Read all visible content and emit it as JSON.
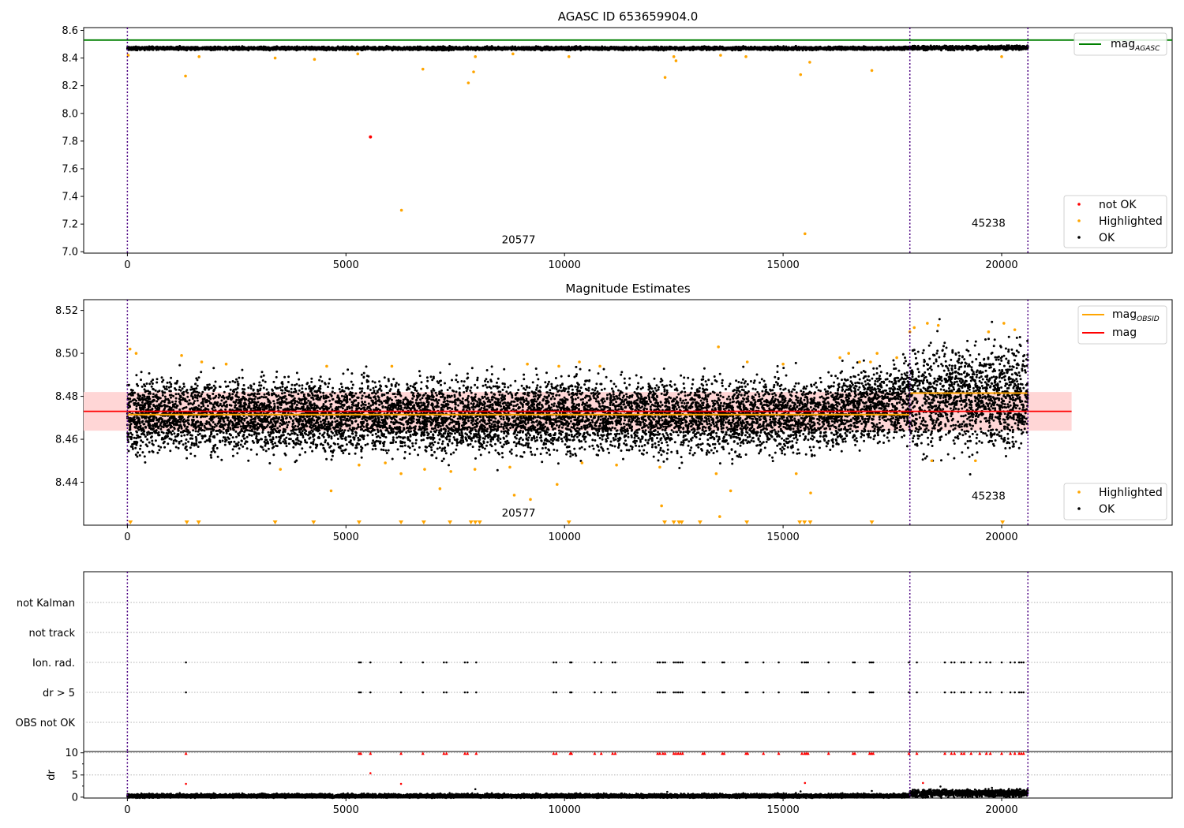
{
  "chart_data": [
    {
      "type": "scatter",
      "title": "AGASC ID 653659904.0",
      "xlim": [
        -1000,
        23900
      ],
      "ylim": [
        6.99,
        8.62
      ],
      "x_ticks": [
        0,
        5000,
        10000,
        15000,
        20000
      ],
      "y_ticks": [
        7.0,
        7.2,
        7.4,
        7.6,
        7.8,
        8.0,
        8.2,
        8.4,
        8.6
      ],
      "x_range": [
        0,
        20600
      ],
      "mag_agasc": 8.53,
      "ok_band": {
        "center": 8.47,
        "halfwidth": 0.006,
        "center_after_17900": 8.474
      },
      "highlighted_points": [
        [
          20,
          8.42
        ],
        [
          1330,
          8.27
        ],
        [
          1640,
          8.41
        ],
        [
          3380,
          8.4
        ],
        [
          4280,
          8.39
        ],
        [
          5270,
          8.43
        ],
        [
          6760,
          8.32
        ],
        [
          7800,
          8.22
        ],
        [
          7920,
          8.3
        ],
        [
          7960,
          8.41
        ],
        [
          8820,
          8.43
        ],
        [
          10100,
          8.41
        ],
        [
          12300,
          8.26
        ],
        [
          12550,
          8.38
        ],
        [
          12500,
          8.41
        ],
        [
          13570,
          8.42
        ],
        [
          14150,
          8.41
        ],
        [
          15400,
          8.28
        ],
        [
          15610,
          8.37
        ],
        [
          17030,
          8.31
        ],
        [
          20000,
          8.41
        ],
        [
          6270,
          7.3
        ],
        [
          15500,
          7.13
        ]
      ],
      "not_ok_points": [
        [
          5560,
          7.83
        ]
      ],
      "obsid_boundaries": [
        0,
        17900,
        20600
      ],
      "obsid_labels": [
        {
          "text": "20577",
          "x": 8950,
          "y": 7.06
        },
        {
          "text": "45238",
          "x": 19700,
          "y": 7.18
        }
      ],
      "legend_top": {
        "placement": "upper right",
        "entries": [
          {
            "label": "mag",
            "sub": "AGASC",
            "color": "#008000"
          }
        ]
      },
      "legend_bottom": {
        "placement": "lower right",
        "entries": [
          {
            "label": "not OK",
            "color": "#ff0000"
          },
          {
            "label": "Highlighted",
            "color": "#ffa500"
          },
          {
            "label": "OK",
            "color": "#000000"
          }
        ]
      }
    },
    {
      "type": "scatter",
      "title": "Magnitude Estimates",
      "xlim": [
        -1000,
        23900
      ],
      "ylim": [
        8.42,
        8.525
      ],
      "x_ticks": [
        0,
        5000,
        10000,
        15000,
        20000
      ],
      "y_ticks": [
        8.44,
        8.46,
        8.48,
        8.5,
        8.52
      ],
      "x_range": [
        0,
        20600
      ],
      "mag": 8.473,
      "mag_band": [
        8.464,
        8.482
      ],
      "mag_band_xrange": [
        -1000,
        21600
      ],
      "mag_obsid": [
        {
          "x0": 0,
          "x1": 17900,
          "value": 8.4715
        },
        {
          "x0": 17900,
          "x1": 20600,
          "value": 8.4815
        }
      ],
      "ok_band": {
        "center_start": 8.471,
        "center_end": 8.478,
        "halfwidth": 0.008,
        "ramp_start": 15500,
        "center_after_17900": 8.48,
        "halfwidth_after_17900": 0.012
      },
      "highlighted_points": [
        [
          60,
          8.502
        ],
        [
          200,
          8.5
        ],
        [
          1240,
          8.499
        ],
        [
          1700,
          8.496
        ],
        [
          2260,
          8.495
        ],
        [
          4560,
          8.494
        ],
        [
          6050,
          8.494
        ],
        [
          9150,
          8.495
        ],
        [
          9870,
          8.494
        ],
        [
          10340,
          8.496
        ],
        [
          10810,
          8.494
        ],
        [
          13520,
          8.503
        ],
        [
          14180,
          8.496
        ],
        [
          15000,
          8.495
        ],
        [
          16300,
          8.498
        ],
        [
          16500,
          8.5
        ],
        [
          16750,
          8.496
        ],
        [
          17000,
          8.496
        ],
        [
          17150,
          8.5
        ],
        [
          17600,
          8.498
        ],
        [
          17900,
          8.51
        ],
        [
          18000,
          8.512
        ],
        [
          18300,
          8.514
        ],
        [
          18550,
          8.513
        ],
        [
          19700,
          8.51
        ],
        [
          20050,
          8.514
        ],
        [
          20300,
          8.511
        ],
        [
          3500,
          8.446
        ],
        [
          4660,
          8.436
        ],
        [
          5300,
          8.448
        ],
        [
          5900,
          8.449
        ],
        [
          6260,
          8.444
        ],
        [
          6800,
          8.446
        ],
        [
          7150,
          8.437
        ],
        [
          7400,
          8.445
        ],
        [
          7950,
          8.446
        ],
        [
          8750,
          8.447
        ],
        [
          8850,
          8.434
        ],
        [
          9220,
          8.432
        ],
        [
          9830,
          8.439
        ],
        [
          10400,
          8.449
        ],
        [
          11190,
          8.448
        ],
        [
          12180,
          8.447
        ],
        [
          12220,
          8.429
        ],
        [
          13470,
          8.444
        ],
        [
          13800,
          8.436
        ],
        [
          13550,
          8.424
        ],
        [
          15300,
          8.444
        ],
        [
          15630,
          8.435
        ],
        [
          18400,
          8.45
        ],
        [
          19400,
          8.45
        ]
      ],
      "clipped_points": [
        70,
        1360,
        1630,
        3380,
        4260,
        5300,
        6260,
        6780,
        7380,
        7860,
        7960,
        8060,
        10100,
        12290,
        12500,
        12620,
        12680,
        13100,
        14170,
        15380,
        15490,
        15620,
        17030,
        20020
      ],
      "obsid_boundaries": [
        0,
        17900,
        20600
      ],
      "obsid_labels": [
        {
          "text": "20577",
          "x": 8950,
          "y": 8.424
        },
        {
          "text": "45238",
          "x": 19700,
          "y": 8.432
        }
      ],
      "legend_top": {
        "placement": "upper right",
        "entries": [
          {
            "label": "mag",
            "sub": "OBSID",
            "color": "#ffa500"
          },
          {
            "label": "mag",
            "color": "#ff0000"
          }
        ]
      },
      "legend_bottom": {
        "placement": "lower right",
        "entries": [
          {
            "label": "Highlighted",
            "color": "#ffa500"
          },
          {
            "label": "OK",
            "color": "#000000"
          }
        ]
      }
    },
    {
      "type": "scatter",
      "title": "",
      "xlim": [
        -1000,
        23900
      ],
      "x_range": [
        0,
        20600
      ],
      "rows": [
        "not Kalman",
        "not track",
        "Ion. rad.",
        "dr > 5",
        "OBS not OK"
      ],
      "flag_times": [
        1340,
        5300,
        5340,
        5560,
        6260,
        6760,
        7240,
        7300,
        7720,
        7780,
        7980,
        9750,
        9810,
        10130,
        10160,
        10690,
        10840,
        11100,
        11160,
        12130,
        12180,
        12250,
        12300,
        12500,
        12550,
        12600,
        12650,
        12700,
        13160,
        13200,
        13610,
        13650,
        14150,
        14190,
        14550,
        14900,
        15430,
        15490,
        15530,
        15570,
        16040,
        16600,
        16640,
        16980,
        17020,
        17060,
        17880,
        18060,
        18700,
        18850,
        18920,
        19080,
        19140,
        19300,
        19500,
        19650,
        19740,
        20000,
        20200,
        20300,
        20400,
        20450,
        20500
      ],
      "flag_rows": [
        "Ion. rad.",
        "dr > 5"
      ]
    },
    {
      "type": "scatter",
      "title": "",
      "xlim": [
        -1000,
        23900
      ],
      "ylim": [
        -0.2,
        10.3
      ],
      "ylabel": "dr",
      "x_ticks": [
        0,
        5000,
        10000,
        15000,
        20000
      ],
      "y_ticks": [
        0,
        5,
        10
      ],
      "x_range": [
        0,
        20600
      ],
      "baseline": {
        "center": 0.3,
        "spread": 0.6,
        "center_after_17900": 0.9,
        "spread_after_17900": 1.2
      },
      "red_points": [
        [
          1340,
          3.0
        ],
        [
          5560,
          5.4
        ],
        [
          6260,
          3.0
        ],
        [
          15500,
          3.2
        ],
        [
          18200,
          3.2
        ]
      ],
      "black_points": [
        [
          7960,
          1.8
        ],
        [
          12350,
          1.2
        ],
        [
          15400,
          1.3
        ],
        [
          17030,
          1.4
        ],
        [
          18600,
          2.4
        ]
      ],
      "red_triangles_at": 9.9
    }
  ],
  "colors": {
    "ok": "#000000",
    "highlighted": "#ffa500",
    "not_ok": "#ff0000",
    "boundary": "#4b0082",
    "mag_agasc": "#008000",
    "mag": "#ff0000",
    "mag_obsid": "#ffa500",
    "band": "#ffd6d6"
  }
}
